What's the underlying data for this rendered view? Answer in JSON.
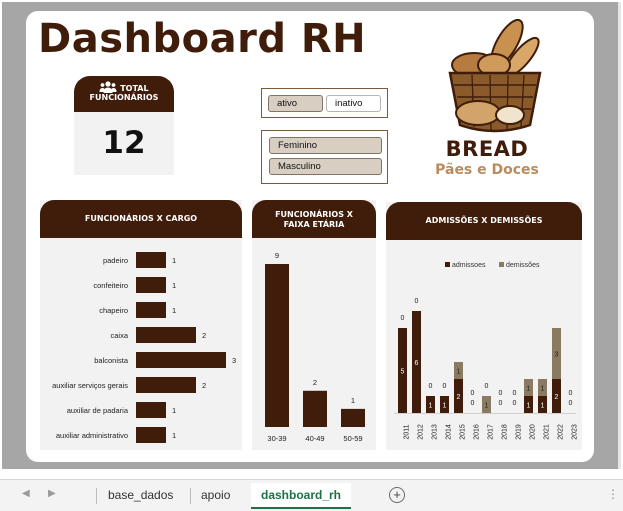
{
  "dashboard": {
    "title": "Dashboard RH",
    "kpi": {
      "label_line1": "TOTAL",
      "label_line2": "FUNCIONÁRIOS",
      "value": "12"
    },
    "slicer_status": {
      "items": [
        {
          "label": "ativo",
          "selected": true
        },
        {
          "label": "inativo",
          "selected": false
        }
      ]
    },
    "slicer_gender": {
      "items": [
        {
          "label": "Feminino",
          "selected": true
        },
        {
          "label": "Masculino",
          "selected": true
        }
      ]
    },
    "logo": {
      "brand": "BREAD",
      "tagline": "Pães e Doces"
    }
  },
  "panels": {
    "cargo_title": "FUNCIONÁRIOS X  CARGO",
    "faixa_title_line1": "FUNCIONÁRIOS X",
    "faixa_title_line2": "FAIXA ETÁRIA",
    "admissoes_title": "ADMISSÕES X DEMISSÕES"
  },
  "chart_data": [
    {
      "type": "bar",
      "orientation": "horizontal",
      "title": "FUNCIONÁRIOS X  CARGO",
      "categories": [
        "padeiro",
        "confeiteiro",
        "chapeiro",
        "caixa",
        "balconista",
        "auxiliar serviços gerais",
        "auxiliar de padaria",
        "auxiliar administrativo"
      ],
      "values": [
        1,
        1,
        1,
        2,
        3,
        2,
        1,
        1
      ],
      "xlim": [
        0,
        3
      ],
      "grid": false,
      "colors": {
        "bar": "#3f1d0a"
      }
    },
    {
      "type": "bar",
      "title": "FUNCIONÁRIOS X FAIXA ETÁRIA",
      "categories": [
        "30-39",
        "40-49",
        "50-59"
      ],
      "values": [
        9,
        2,
        1
      ],
      "ylim": [
        0,
        9
      ],
      "grid": false,
      "colors": {
        "bar": "#3f1d0a"
      }
    },
    {
      "type": "bar",
      "stacked": true,
      "title": "ADMISSÕES X DEMISSÕES",
      "categories": [
        "2011",
        "2012",
        "2013",
        "2014",
        "2015",
        "2016",
        "2017",
        "2018",
        "2019",
        "2020",
        "2021",
        "2022",
        "2023"
      ],
      "series": [
        {
          "name": "admissoes",
          "values": [
            5,
            6,
            1,
            1,
            2,
            0,
            0,
            0,
            0,
            1,
            1,
            2,
            0
          ],
          "color": "#3f1d0a"
        },
        {
          "name": "demissões",
          "values": [
            0,
            0,
            0,
            0,
            1,
            0,
            1,
            0,
            0,
            1,
            1,
            3,
            0
          ],
          "color": "#8a7a62"
        }
      ],
      "legend": "top",
      "grid": false
    }
  ],
  "sheet_tabs": [
    {
      "label": "base_dados",
      "active": false
    },
    {
      "label": "apoio",
      "active": false
    },
    {
      "label": "dashboard_rh",
      "active": true
    }
  ],
  "colors": {
    "brand_dark": "#3f1d0a",
    "brand_light": "#b98c5e",
    "panel_bg": "#f2f2f2",
    "sheet_active": "#1e7145"
  }
}
